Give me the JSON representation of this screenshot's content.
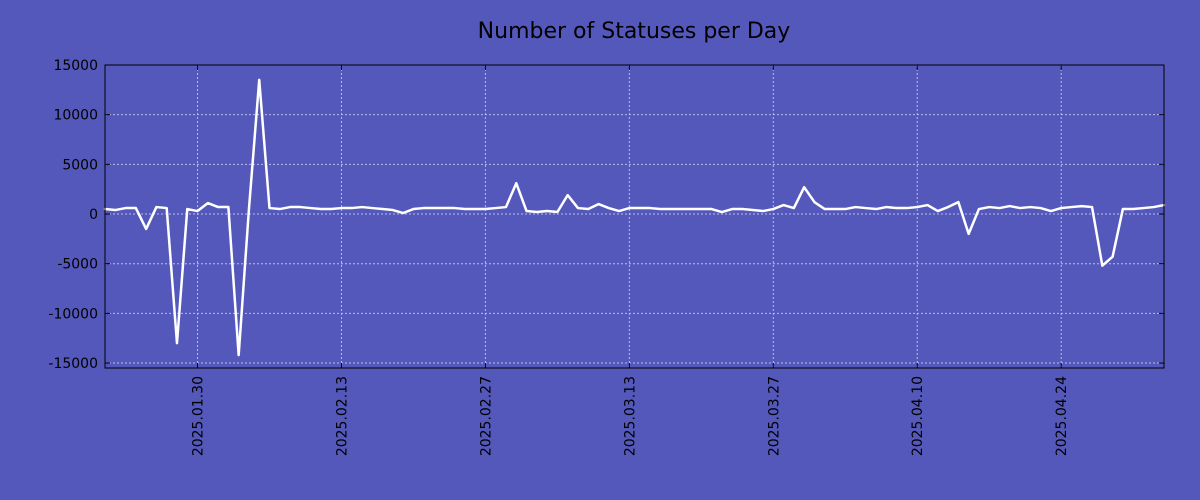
{
  "chart_data": {
    "type": "line",
    "title": "Number of Statuses per Day",
    "xlabel": "",
    "ylabel": "",
    "ylim": [
      -15500,
      15000
    ],
    "xlim": [
      "2025-01-21",
      "2025-05-04"
    ],
    "grid": true,
    "legend": "none",
    "colors": {
      "background": "#5558bb",
      "line": "#ffffff",
      "grid": "#b9bbe6",
      "text": "#000000"
    },
    "y_ticks": [
      15000,
      10000,
      5000,
      0,
      -5000,
      -10000,
      -15000
    ],
    "y_tick_labels": [
      "15000",
      "10000",
      "5000",
      "0",
      "-5000",
      "-10000",
      "-15000"
    ],
    "x_ticks": [
      "2025-01-30",
      "2025-02-13",
      "2025-02-27",
      "2025-03-13",
      "2025-03-27",
      "2025-04-10",
      "2025-04-24"
    ],
    "x_tick_labels": [
      "2025.01.30",
      "2025.02.13",
      "2025.02.27",
      "2025.03.13",
      "2025.03.27",
      "2025.04.10",
      "2025.04.24"
    ],
    "x": [
      "2025-01-21",
      "2025-01-22",
      "2025-01-23",
      "2025-01-24",
      "2025-01-25",
      "2025-01-26",
      "2025-01-27",
      "2025-01-28",
      "2025-01-29",
      "2025-01-30",
      "2025-01-31",
      "2025-02-01",
      "2025-02-02",
      "2025-02-03",
      "2025-02-04",
      "2025-02-05",
      "2025-02-06",
      "2025-02-07",
      "2025-02-08",
      "2025-02-09",
      "2025-02-10",
      "2025-02-11",
      "2025-02-12",
      "2025-02-13",
      "2025-02-14",
      "2025-02-15",
      "2025-02-16",
      "2025-02-17",
      "2025-02-18",
      "2025-02-19",
      "2025-02-20",
      "2025-02-21",
      "2025-02-22",
      "2025-02-23",
      "2025-02-24",
      "2025-02-25",
      "2025-02-26",
      "2025-02-27",
      "2025-02-28",
      "2025-03-01",
      "2025-03-02",
      "2025-03-03",
      "2025-03-04",
      "2025-03-05",
      "2025-03-06",
      "2025-03-07",
      "2025-03-08",
      "2025-03-09",
      "2025-03-10",
      "2025-03-11",
      "2025-03-12",
      "2025-03-13",
      "2025-03-14",
      "2025-03-15",
      "2025-03-16",
      "2025-03-17",
      "2025-03-18",
      "2025-03-19",
      "2025-03-20",
      "2025-03-21",
      "2025-03-22",
      "2025-03-23",
      "2025-03-24",
      "2025-03-25",
      "2025-03-26",
      "2025-03-27",
      "2025-03-28",
      "2025-03-29",
      "2025-03-30",
      "2025-03-31",
      "2025-04-01",
      "2025-04-02",
      "2025-04-03",
      "2025-04-04",
      "2025-04-05",
      "2025-04-06",
      "2025-04-07",
      "2025-04-08",
      "2025-04-09",
      "2025-04-10",
      "2025-04-11",
      "2025-04-12",
      "2025-04-13",
      "2025-04-14",
      "2025-04-15",
      "2025-04-16",
      "2025-04-17",
      "2025-04-18",
      "2025-04-19",
      "2025-04-20",
      "2025-04-21",
      "2025-04-22",
      "2025-04-23",
      "2025-04-24",
      "2025-04-25",
      "2025-04-26",
      "2025-04-27",
      "2025-04-28",
      "2025-04-29",
      "2025-04-30",
      "2025-05-01",
      "2025-05-02",
      "2025-05-03",
      "2025-05-04"
    ],
    "series": [
      {
        "values": [
          500,
          400,
          600,
          600,
          -1500,
          700,
          600,
          -13000,
          500,
          300,
          1100,
          700,
          700,
          -14200,
          500,
          13500,
          600,
          500,
          700,
          700,
          600,
          500,
          500,
          600,
          600,
          700,
          600,
          500,
          400,
          100,
          500,
          600,
          600,
          600,
          600,
          500,
          500,
          500,
          600,
          700,
          3100,
          300,
          200,
          300,
          200,
          1900,
          600,
          500,
          1000,
          600,
          300,
          600,
          600,
          600,
          500,
          500,
          500,
          500,
          500,
          500,
          200,
          500,
          500,
          400,
          300,
          500,
          900,
          600,
          2700,
          1200,
          500,
          500,
          500,
          700,
          600,
          500,
          700,
          600,
          600,
          700,
          900,
          300,
          700,
          1200,
          -2000,
          500,
          700,
          600,
          800,
          600,
          700,
          600,
          300,
          600,
          700,
          800,
          700,
          -5200,
          -4300,
          500,
          500,
          600,
          700,
          900
        ]
      }
    ]
  }
}
